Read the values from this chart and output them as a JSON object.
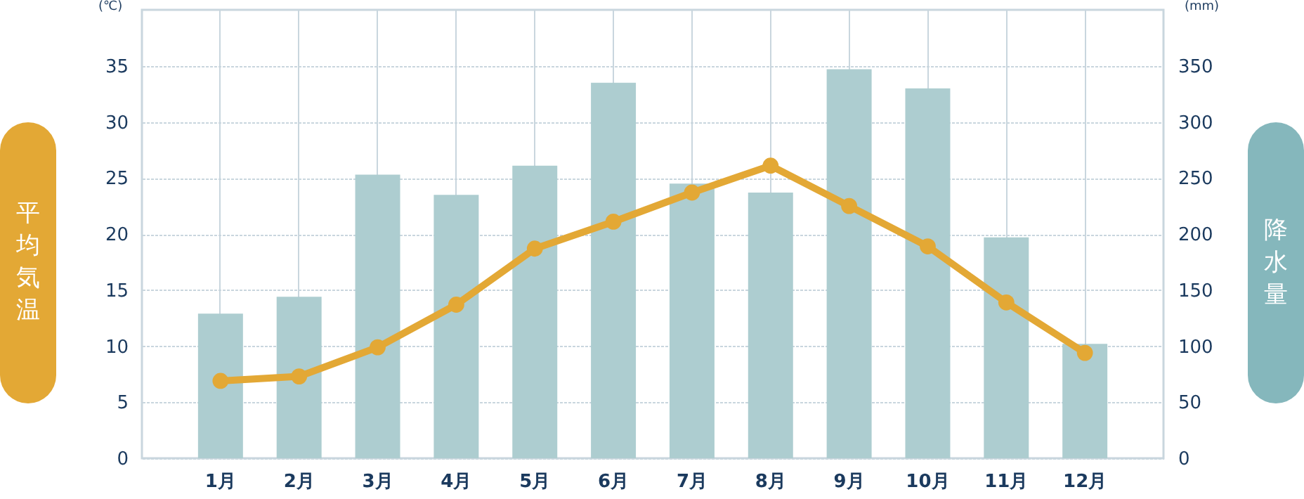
{
  "chart_data": {
    "type": "bar",
    "ylabel": "平均気温",
    "y2label": "降水量",
    "annotations": [
      "(℃)",
      "(mm)"
    ],
    "categories": [
      "1月",
      "2月",
      "3月",
      "4月",
      "5月",
      "6月",
      "7月",
      "8月",
      "9月",
      "10月",
      "11月",
      "12月"
    ],
    "series": [
      {
        "axis": "y2",
        "color": "#adcdd0",
        "values": [
          129,
          144,
          253,
          235,
          261,
          335,
          245,
          237,
          347,
          330,
          197,
          102
        ]
      },
      {
        "type": "line",
        "axis": "y",
        "color": "#e3a835",
        "marker": "circle",
        "line_style": "solid",
        "values": [
          6.9,
          7.3,
          9.9,
          13.7,
          18.7,
          21.1,
          23.7,
          26.1,
          22.5,
          18.9,
          13.9,
          9.4
        ]
      }
    ],
    "ylim": [
      0,
      40
    ],
    "yticks": [
      0,
      5,
      10,
      15,
      20,
      25,
      30,
      35
    ],
    "y2lim": [
      0,
      400
    ],
    "y2ticks": [
      0,
      50,
      100,
      150,
      200,
      250,
      300,
      350
    ],
    "grid": true
  }
}
